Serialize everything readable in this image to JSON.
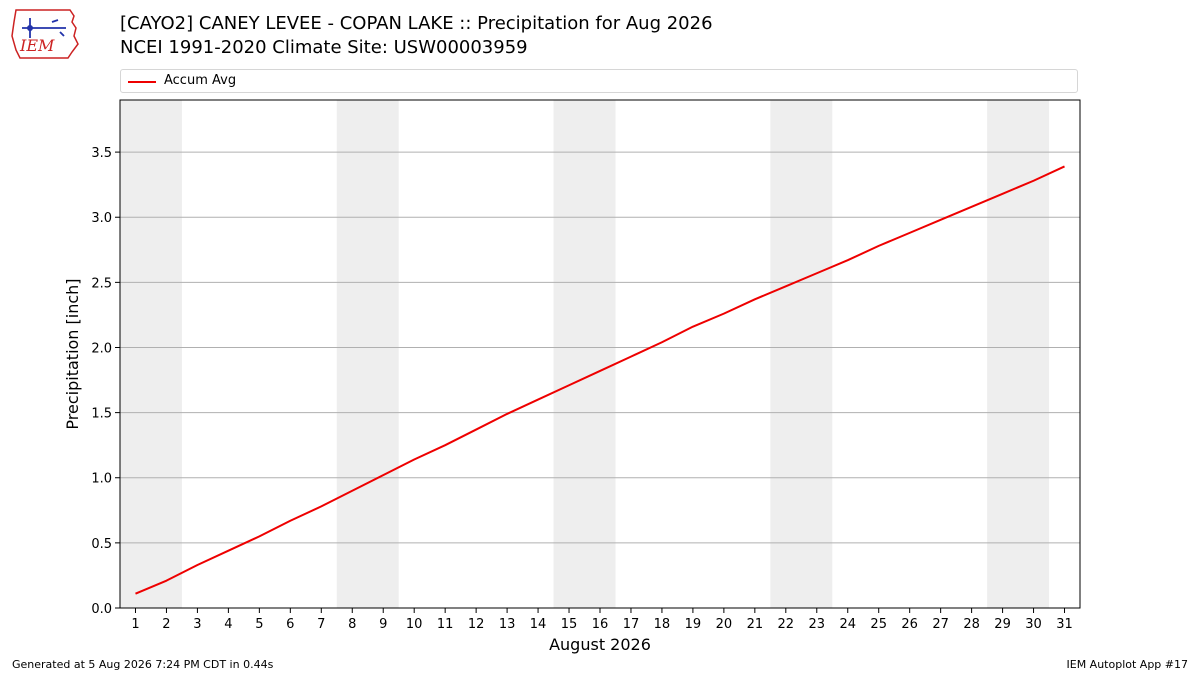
{
  "header": {
    "title": "[CAYO2] CANEY LEVEE - COPAN LAKE :: Precipitation for Aug 2026",
    "subtitle": "NCEI 1991-2020 Climate Site: USW00003959",
    "logo_text": "IEM"
  },
  "footer": {
    "generated": "Generated at 5 Aug 2026 7:24 PM CDT in 0.44s",
    "app": "IEM Autoplot App #17"
  },
  "colors": {
    "line": "#ee0000",
    "weekend_band": "#eeeeee",
    "grid": "#b0b0b0",
    "logo_red": "#cc2222",
    "logo_blue": "#2233aa"
  },
  "chart_data": {
    "type": "line",
    "title": "[CAYO2] CANEY LEVEE - COPAN LAKE :: Precipitation for Aug 2026",
    "subtitle": "NCEI 1991-2020 Climate Site: USW00003959",
    "xlabel": "August 2026",
    "ylabel": "Precipitation [inch]",
    "xlim": [
      0.5,
      31.5
    ],
    "ylim": [
      0.0,
      3.9
    ],
    "yticks": [
      0.0,
      0.5,
      1.0,
      1.5,
      2.0,
      2.5,
      3.0,
      3.5
    ],
    "ytick_labels": [
      "0.0",
      "0.5",
      "1.0",
      "1.5",
      "2.0",
      "2.5",
      "3.0",
      "3.5"
    ],
    "categories": [
      1,
      2,
      3,
      4,
      5,
      6,
      7,
      8,
      9,
      10,
      11,
      12,
      13,
      14,
      15,
      16,
      17,
      18,
      19,
      20,
      21,
      22,
      23,
      24,
      25,
      26,
      27,
      28,
      29,
      30,
      31
    ],
    "tick_labels": [
      "1",
      "2",
      "3",
      "4",
      "5",
      "6",
      "7",
      "8",
      "9",
      "10",
      "11",
      "12",
      "13",
      "14",
      "15",
      "16",
      "17",
      "18",
      "19",
      "20",
      "21",
      "22",
      "23",
      "24",
      "25",
      "26",
      "27",
      "28",
      "29",
      "30",
      "31"
    ],
    "weekend_bands": [
      [
        0.5,
        2.5
      ],
      [
        7.5,
        9.5
      ],
      [
        14.5,
        16.5
      ],
      [
        21.5,
        23.5
      ],
      [
        28.5,
        30.5
      ]
    ],
    "grid": "horizontal",
    "legend": {
      "position": "top",
      "entries": [
        "Accum Avg"
      ]
    },
    "series": [
      {
        "name": "Accum Avg",
        "values": [
          0.11,
          0.21,
          0.33,
          0.44,
          0.55,
          0.67,
          0.78,
          0.9,
          1.02,
          1.14,
          1.25,
          1.37,
          1.49,
          1.6,
          1.71,
          1.82,
          1.93,
          2.04,
          2.16,
          2.26,
          2.37,
          2.47,
          2.57,
          2.67,
          2.78,
          2.88,
          2.98,
          3.08,
          3.18,
          3.28,
          3.39
        ]
      }
    ]
  }
}
